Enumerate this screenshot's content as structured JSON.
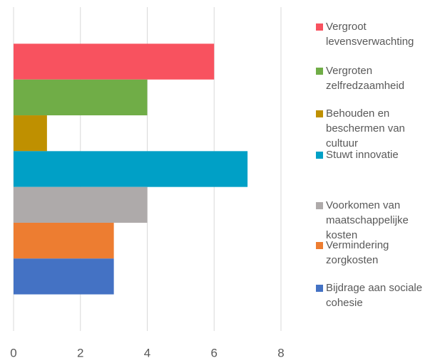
{
  "chart_data": {
    "type": "bar",
    "orientation": "horizontal",
    "categories": [
      null
    ],
    "series": [
      {
        "name": "Vergroot levensverwachting",
        "color": "#f8525f",
        "values": [
          6
        ]
      },
      {
        "name": "Vergroten zelfredzaamheid",
        "color": "#70ad47",
        "values": [
          4
        ]
      },
      {
        "name": "Behouden en beschermen van cultuur",
        "color": "#bf9000",
        "values": [
          1
        ]
      },
      {
        "name": "Stuwt innovatie",
        "color": "#00a0c6",
        "values": [
          7
        ]
      },
      {
        "name": "Voorkomen van maatschappelijke kosten",
        "color": "#aeaaaa",
        "values": [
          4
        ]
      },
      {
        "name": "Vermindering zorgkosten",
        "color": "#ed7d31",
        "values": [
          3
        ]
      },
      {
        "name": "Bijdrage aan sociale cohesie",
        "color": "#4472c4",
        "values": [
          3
        ]
      }
    ],
    "xlim": [
      0,
      8
    ],
    "xticks": [
      0,
      2,
      4,
      6,
      8
    ],
    "grid": true,
    "legend": "right"
  }
}
